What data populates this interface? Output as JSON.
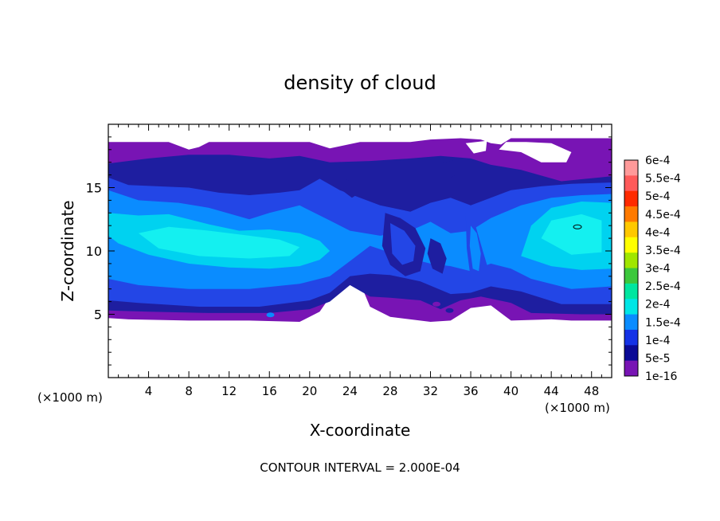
{
  "chart_data": {
    "type": "heatmap",
    "title": "density of cloud",
    "xlabel": "X-coordinate",
    "ylabel": "Z-coordinate",
    "x_unit_left": "(×1000 m)",
    "x_unit_right": "(×1000 m)",
    "xlim": [
      0,
      50
    ],
    "ylim": [
      0,
      20
    ],
    "x_ticks": [
      4,
      8,
      12,
      16,
      20,
      24,
      28,
      32,
      36,
      40,
      44,
      48
    ],
    "y_ticks": [
      5,
      10,
      15
    ],
    "footer": "CONTOUR INTERVAL = 2.000E-04",
    "colorbar": {
      "labels": [
        "6e-4",
        "5.5e-4",
        "5e-4",
        "4.5e-4",
        "4e-4",
        "3.5e-4",
        "3e-4",
        "2.5e-4",
        "2e-4",
        "1.5e-4",
        "1e-4",
        "5e-5",
        "1e-16"
      ],
      "colors": [
        "#ff9a9a",
        "#ff5a5a",
        "#ff2a00",
        "#ff7a00",
        "#ffc800",
        "#ffff00",
        "#a0e600",
        "#3cc83c",
        "#00e6a0",
        "#00e6e6",
        "#0a8cff",
        "#1432e6",
        "#0a0a96",
        "#7814b4"
      ]
    },
    "levels_color": {
      "0": "#7814b4",
      "1": "#1e1ea0",
      "2": "#2346e6",
      "3": "#0a8cff",
      "4": "#00d2f0",
      "5": "#14f0f0"
    },
    "regions": [
      {
        "level": 0,
        "points": [
          [
            0,
            18.6
          ],
          [
            6,
            18.6
          ],
          [
            8,
            18.0
          ],
          [
            9,
            18.2
          ],
          [
            10,
            18.6
          ],
          [
            20,
            18.6
          ],
          [
            22,
            18.1
          ],
          [
            25,
            18.6
          ],
          [
            30,
            18.6
          ],
          [
            32,
            18.8
          ],
          [
            35,
            18.9
          ],
          [
            37,
            18.8
          ],
          [
            38,
            18.5
          ],
          [
            39,
            18.4
          ],
          [
            40,
            18.9
          ],
          [
            50,
            18.9
          ],
          [
            50,
            4.5
          ],
          [
            46,
            4.5
          ],
          [
            44,
            4.6
          ],
          [
            40,
            4.5
          ],
          [
            38,
            5.7
          ],
          [
            36,
            5.5
          ],
          [
            34,
            4.5
          ],
          [
            32,
            4.4
          ],
          [
            28,
            4.8
          ],
          [
            26,
            5.6
          ],
          [
            25,
            7.5
          ],
          [
            23,
            7.5
          ],
          [
            21,
            5.2
          ],
          [
            19,
            4.4
          ],
          [
            14,
            4.5
          ],
          [
            8,
            4.5
          ],
          [
            2,
            4.6
          ],
          [
            0,
            4.7
          ]
        ]
      },
      {
        "level": 1,
        "points": [
          [
            0,
            16.9
          ],
          [
            4,
            17.3
          ],
          [
            8,
            17.6
          ],
          [
            12,
            17.6
          ],
          [
            16,
            17.3
          ],
          [
            19,
            17.5
          ],
          [
            22,
            17.0
          ],
          [
            26,
            17.1
          ],
          [
            30,
            17.3
          ],
          [
            33,
            17.5
          ],
          [
            36,
            17.3
          ],
          [
            38,
            16.8
          ],
          [
            41,
            16.4
          ],
          [
            45,
            15.5
          ],
          [
            50,
            15.9
          ],
          [
            50,
            5.0
          ],
          [
            47,
            5.0
          ],
          [
            42,
            5.1
          ],
          [
            40,
            5.9
          ],
          [
            37,
            6.4
          ],
          [
            35,
            6.1
          ],
          [
            33,
            5.4
          ],
          [
            31,
            6.1
          ],
          [
            28,
            6.3
          ],
          [
            26,
            6.4
          ],
          [
            24,
            7.3
          ],
          [
            22,
            6.0
          ],
          [
            20,
            5.4
          ],
          [
            16,
            5.1
          ],
          [
            10,
            5.1
          ],
          [
            4,
            5.2
          ],
          [
            0,
            5.3
          ]
        ]
      },
      {
        "level": 2,
        "points": [
          [
            0,
            15.8
          ],
          [
            2,
            15.2
          ],
          [
            5,
            15.1
          ],
          [
            8,
            15.0
          ],
          [
            11,
            14.6
          ],
          [
            14,
            14.4
          ],
          [
            17,
            14.6
          ],
          [
            19,
            14.8
          ],
          [
            21,
            15.7
          ],
          [
            23,
            14.8
          ],
          [
            25,
            14.2
          ],
          [
            27,
            13.6
          ],
          [
            30,
            13.1
          ],
          [
            32,
            13.8
          ],
          [
            34,
            14.2
          ],
          [
            36,
            13.6
          ],
          [
            38,
            14.2
          ],
          [
            40,
            14.8
          ],
          [
            43,
            15.1
          ],
          [
            46,
            15.3
          ],
          [
            50,
            15.4
          ],
          [
            50,
            5.8
          ],
          [
            45,
            5.8
          ],
          [
            41,
            6.8
          ],
          [
            38,
            7.2
          ],
          [
            36,
            6.7
          ],
          [
            34,
            6.6
          ],
          [
            31,
            7.6
          ],
          [
            28,
            8.1
          ],
          [
            26,
            8.2
          ],
          [
            24,
            8.0
          ],
          [
            22,
            6.7
          ],
          [
            20,
            6.1
          ],
          [
            15,
            5.6
          ],
          [
            9,
            5.6
          ],
          [
            3,
            5.9
          ],
          [
            0,
            6.1
          ]
        ]
      },
      {
        "level": 3,
        "points": [
          [
            0,
            14.8
          ],
          [
            3,
            14.0
          ],
          [
            7,
            13.8
          ],
          [
            10,
            13.4
          ],
          [
            14,
            12.5
          ],
          [
            16,
            13.0
          ],
          [
            19,
            13.6
          ],
          [
            22,
            12.4
          ],
          [
            24,
            11.6
          ],
          [
            27,
            11.2
          ],
          [
            30,
            11.6
          ],
          [
            32,
            12.3
          ],
          [
            34,
            11.4
          ],
          [
            36,
            11.6
          ],
          [
            38,
            12.6
          ],
          [
            41,
            13.6
          ],
          [
            44,
            14.2
          ],
          [
            47,
            14.4
          ],
          [
            50,
            14.5
          ],
          [
            50,
            7.2
          ],
          [
            46,
            7.0
          ],
          [
            42,
            7.8
          ],
          [
            40,
            8.6
          ],
          [
            38,
            9.0
          ],
          [
            36,
            8.4
          ],
          [
            34,
            8.8
          ],
          [
            32,
            9.0
          ],
          [
            29,
            9.6
          ],
          [
            26,
            10.4
          ],
          [
            24,
            9.2
          ],
          [
            22,
            8.0
          ],
          [
            19,
            7.4
          ],
          [
            14,
            7.0
          ],
          [
            8,
            7.0
          ],
          [
            3,
            7.3
          ],
          [
            0,
            7.8
          ]
        ]
      },
      {
        "level": 4,
        "points": [
          [
            0,
            13.0
          ],
          [
            3,
            12.8
          ],
          [
            6,
            12.9
          ],
          [
            10,
            12.1
          ],
          [
            13,
            11.6
          ],
          [
            16,
            11.7
          ],
          [
            19,
            11.4
          ],
          [
            21,
            10.8
          ],
          [
            22,
            10.0
          ],
          [
            21,
            9.3
          ],
          [
            19,
            8.8
          ],
          [
            16,
            8.6
          ],
          [
            12,
            8.7
          ],
          [
            8,
            9.0
          ],
          [
            4,
            9.7
          ],
          [
            1,
            10.6
          ],
          [
            0,
            11.2
          ]
        ]
      },
      {
        "level": 4,
        "points": [
          [
            41,
            9.6
          ],
          [
            42,
            12.0
          ],
          [
            44,
            13.4
          ],
          [
            47,
            13.9
          ],
          [
            50,
            13.8
          ],
          [
            50,
            8.6
          ],
          [
            47,
            8.5
          ],
          [
            44,
            8.8
          ]
        ]
      },
      {
        "level": 5,
        "points": [
          [
            3,
            11.4
          ],
          [
            6,
            11.9
          ],
          [
            10,
            11.6
          ],
          [
            14,
            11.2
          ],
          [
            17,
            10.9
          ],
          [
            19,
            10.3
          ],
          [
            18,
            9.6
          ],
          [
            14,
            9.4
          ],
          [
            9,
            9.6
          ],
          [
            5,
            10.2
          ]
        ]
      },
      {
        "level": 5,
        "points": [
          [
            43,
            11.0
          ],
          [
            44,
            12.4
          ],
          [
            47,
            12.9
          ],
          [
            49,
            12.4
          ],
          [
            49,
            9.9
          ],
          [
            46,
            9.7
          ]
        ]
      },
      {
        "level": 2,
        "points": [
          [
            35.5,
            13.0
          ],
          [
            36.4,
            12.2
          ],
          [
            37.2,
            10.0
          ],
          [
            37.8,
            8.4
          ],
          [
            37.0,
            7.2
          ],
          [
            36.0,
            7.8
          ],
          [
            35.6,
            10.2
          ]
        ]
      },
      {
        "level": 3,
        "points": [
          [
            36.0,
            12.0
          ],
          [
            36.6,
            11.4
          ],
          [
            37.0,
            9.8
          ],
          [
            36.8,
            8.4
          ],
          [
            36.2,
            8.6
          ],
          [
            35.9,
            10.4
          ]
        ]
      },
      {
        "level": 1,
        "points": [
          [
            27.5,
            13.0
          ],
          [
            29.0,
            12.6
          ],
          [
            30.5,
            11.8
          ],
          [
            31.5,
            10.2
          ],
          [
            31.0,
            8.4
          ],
          [
            29.5,
            8.0
          ],
          [
            28.0,
            8.9
          ],
          [
            27.2,
            10.4
          ]
        ]
      },
      {
        "level": 2,
        "points": [
          [
            28.0,
            12.2
          ],
          [
            29.4,
            11.6
          ],
          [
            30.5,
            10.4
          ],
          [
            30.3,
            9.2
          ],
          [
            29.2,
            8.9
          ],
          [
            28.2,
            9.8
          ]
        ]
      },
      {
        "level": 1,
        "points": [
          [
            32,
            11.0
          ],
          [
            33,
            10.6
          ],
          [
            33.6,
            9.4
          ],
          [
            33.2,
            8.2
          ],
          [
            32.2,
            8.6
          ],
          [
            31.7,
            9.8
          ]
        ]
      },
      {
        "level": 1,
        "points": [
          [
            23,
            15.8
          ],
          [
            24.4,
            15.4
          ],
          [
            25,
            14.6
          ],
          [
            24.2,
            14.2
          ],
          [
            23.2,
            14.8
          ]
        ]
      },
      {
        "level": 1,
        "points": [
          [
            33,
            16.9
          ],
          [
            34.5,
            17.2
          ],
          [
            35,
            16.2
          ],
          [
            34,
            15.8
          ]
        ]
      }
    ],
    "white_gaps": [
      {
        "points": [
          [
            38.8,
            18.0
          ],
          [
            41.0,
            17.8
          ],
          [
            43.0,
            17.0
          ],
          [
            45.5,
            17.0
          ],
          [
            46.0,
            17.8
          ],
          [
            44.0,
            18.5
          ],
          [
            41.5,
            18.6
          ],
          [
            39.5,
            18.6
          ]
        ]
      },
      {
        "points": [
          [
            35.5,
            18.5
          ],
          [
            36.3,
            17.7
          ],
          [
            37.5,
            17.9
          ],
          [
            37.6,
            18.7
          ]
        ]
      }
    ],
    "spots": [
      {
        "x": 16.1,
        "z": 4.95,
        "level": 3
      },
      {
        "x": 33.9,
        "z": 5.3,
        "level": 1
      },
      {
        "x": 32.6,
        "z": 5.8,
        "level": 0
      }
    ],
    "contour_marks": [
      {
        "x": 46.6,
        "z": 11.9
      }
    ]
  }
}
